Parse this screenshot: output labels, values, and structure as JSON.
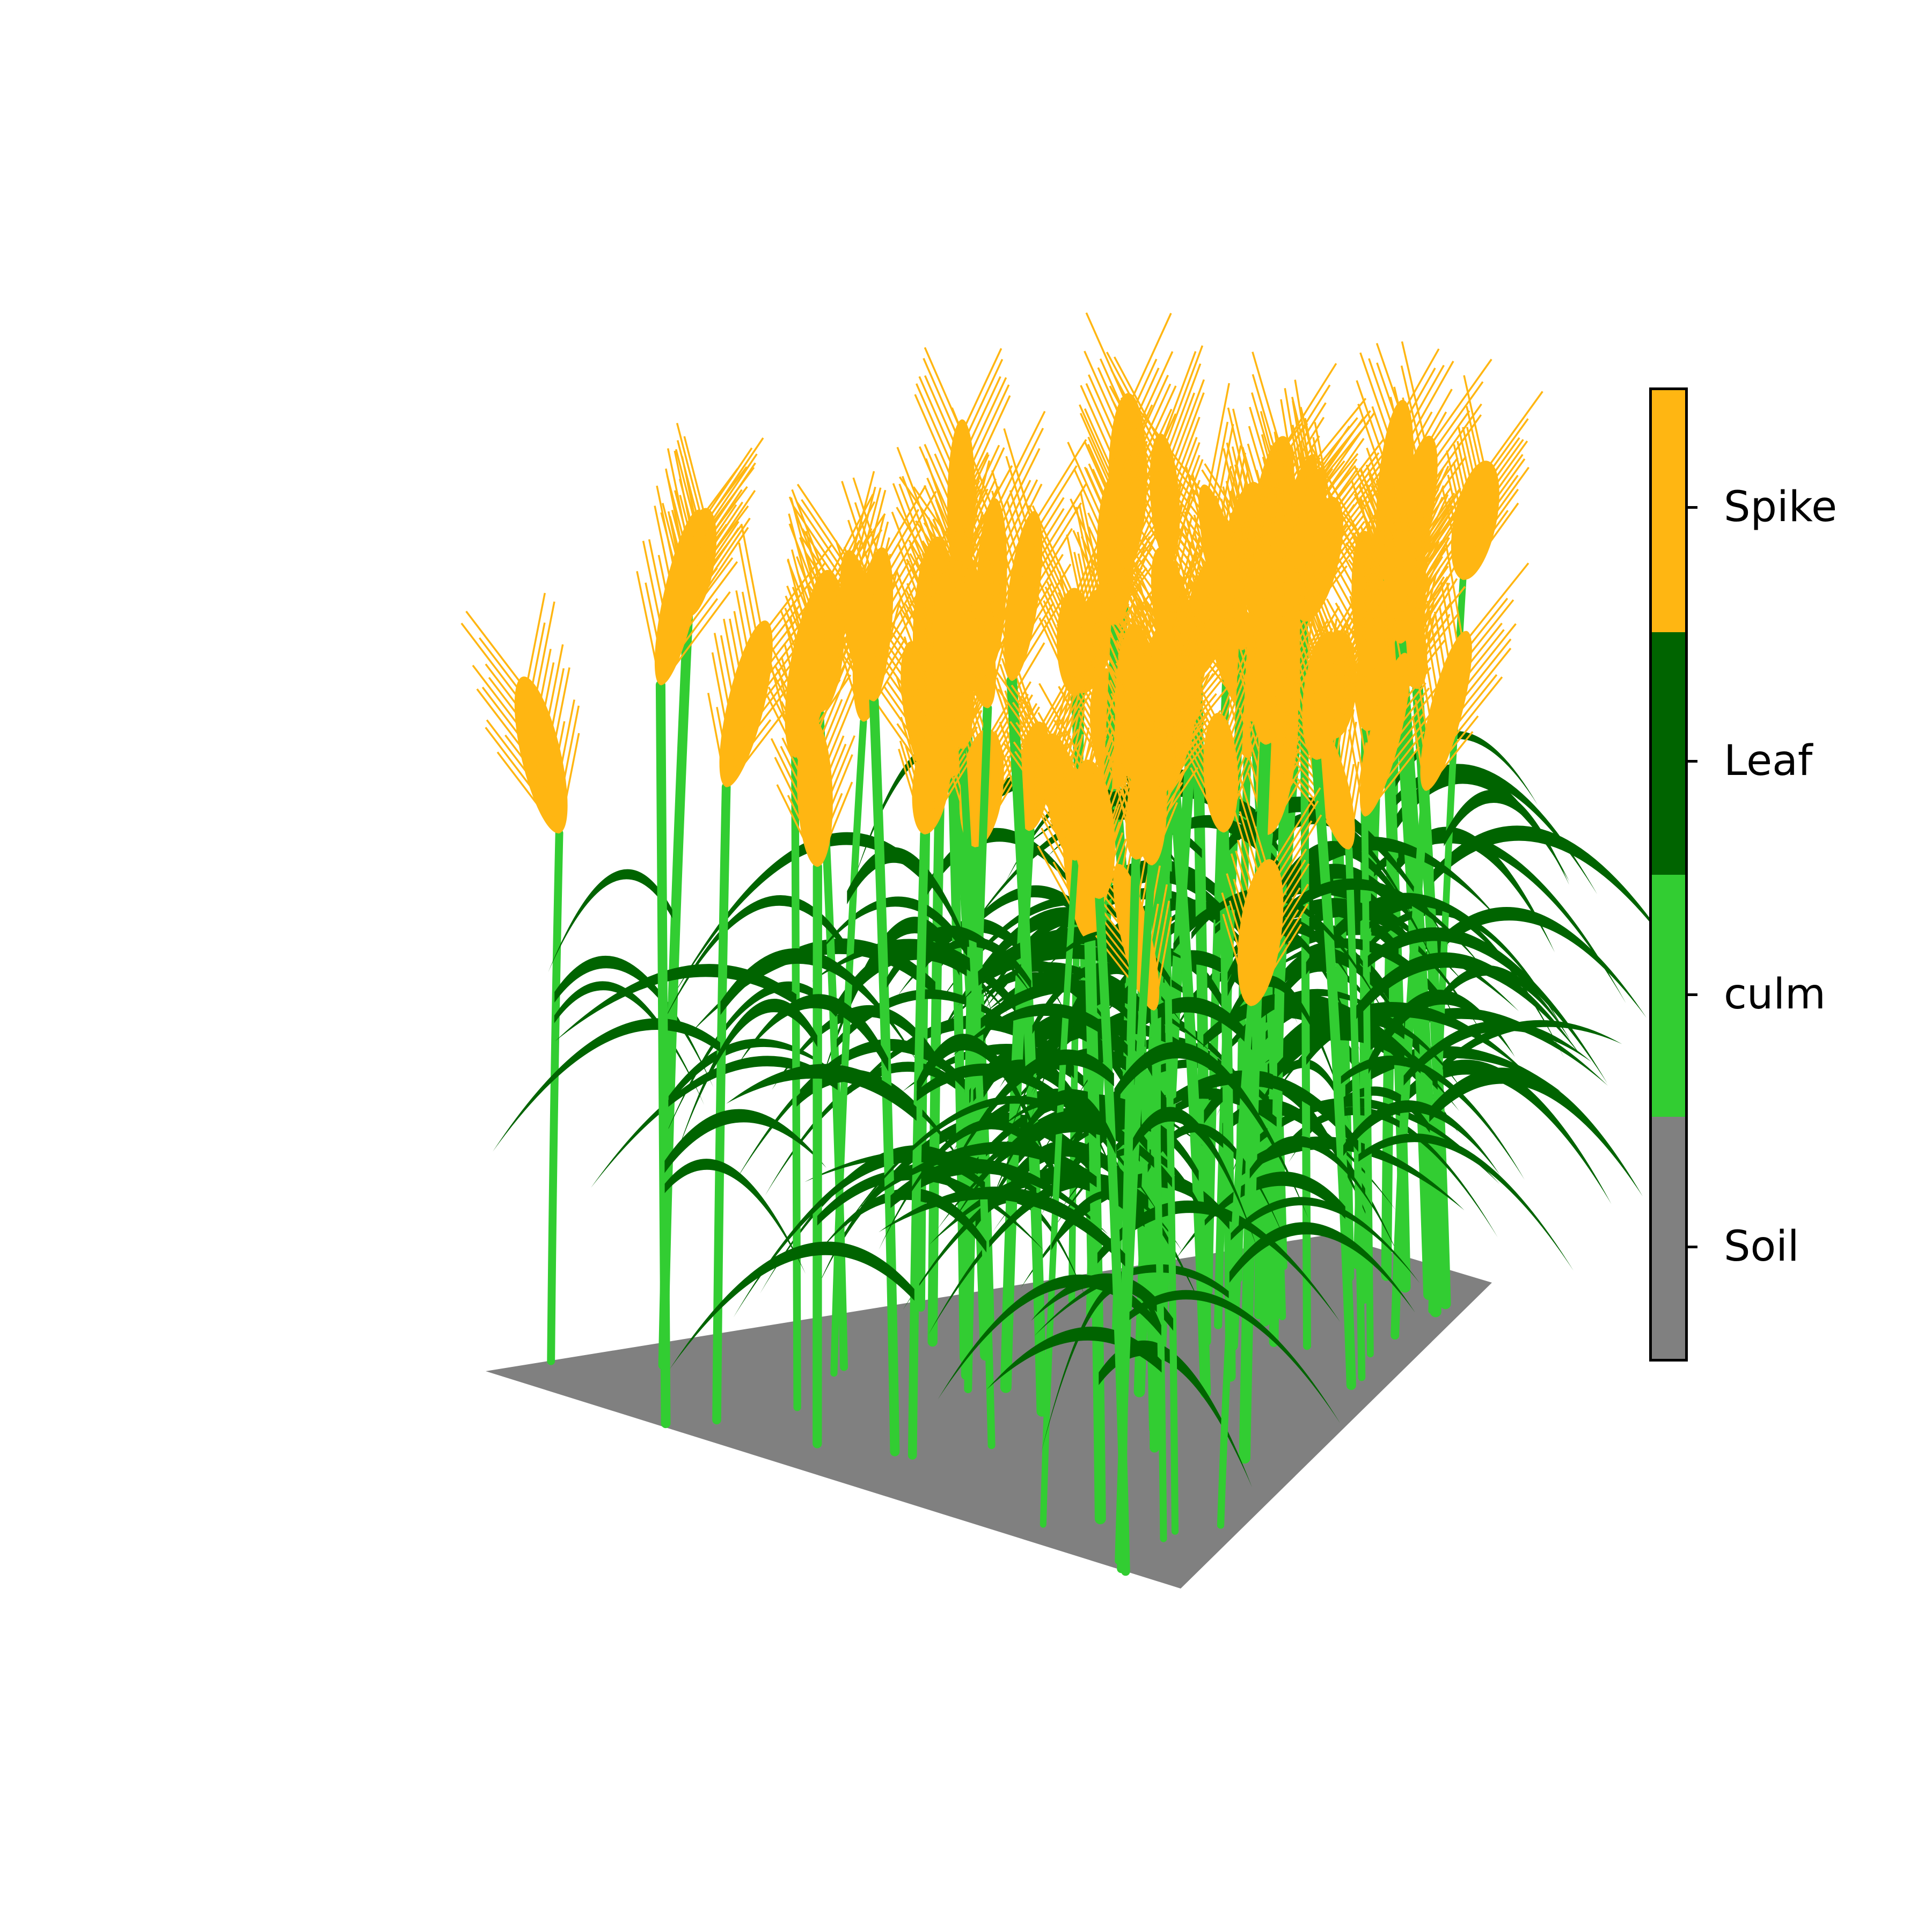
{
  "colors": {
    "background": "#ffffff",
    "spike": "#FFB612",
    "leaf": "#006400",
    "culm": "#32CD32",
    "soil": "#808080"
  },
  "colorbar": {
    "categories": [
      {
        "label": "Spike",
        "color": "#FFB612"
      },
      {
        "label": "Leaf",
        "color": "#006400"
      },
      {
        "label": "culm",
        "color": "#32CD32"
      },
      {
        "label": "Soil",
        "color": "#808080"
      }
    ]
  },
  "scene": {
    "subject": "3D render of a wheat canopy on a gray soil plot",
    "plant_count": 70
  }
}
